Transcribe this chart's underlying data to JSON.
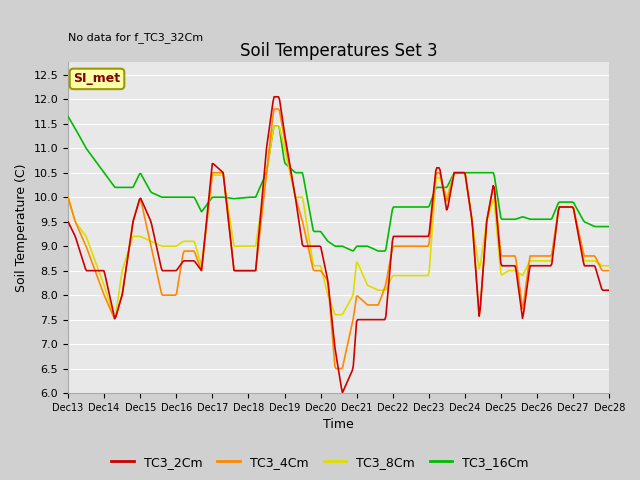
{
  "title": "Soil Temperatures Set 3",
  "no_data_text": "No data for f_TC3_32Cm",
  "xlabel": "Time",
  "ylabel": "Soil Temperature (C)",
  "ylim": [
    6.0,
    12.75
  ],
  "yticks": [
    6.0,
    6.5,
    7.0,
    7.5,
    8.0,
    8.5,
    9.0,
    9.5,
    10.0,
    10.5,
    11.0,
    11.5,
    12.0,
    12.5
  ],
  "xtick_labels": [
    "Dec 13",
    "Dec 14",
    "Dec 15",
    "Dec 16",
    "Dec 17",
    "Dec 18",
    "Dec 19",
    "Dec 20",
    "Dec 21",
    "Dec 22",
    "Dec 23",
    "Dec 24",
    "Dec 25",
    "Dec 26",
    "Dec 27",
    "Dec 28"
  ],
  "fig_bg_color": "#d0d0d0",
  "plot_bg_color": "#e8e8e8",
  "grid_color": "#ffffff",
  "line_colors": {
    "TC3_2Cm": "#cc0000",
    "TC3_4Cm": "#ff8800",
    "TC3_8Cm": "#dddd00",
    "TC3_16Cm": "#00bb00"
  },
  "legend_label": "SI_met",
  "legend_box_color": "#ffffaa",
  "legend_box_border": "#999900",
  "legend_text_color": "#880000",
  "title_fontsize": 12,
  "axis_label_fontsize": 9,
  "tick_fontsize": 8,
  "legend_fontsize": 9
}
